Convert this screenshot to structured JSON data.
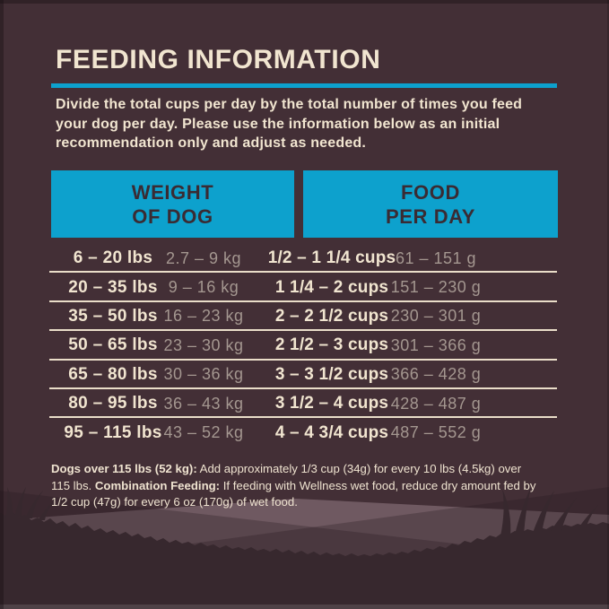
{
  "title": "FEEDING INFORMATION",
  "intro_lines": [
    "Divide the total cups per day by the total number of times you feed",
    "your dog per day. Please use the information below as an initial",
    "recommendation only and adjust as needed."
  ],
  "table": {
    "weight_header": {
      "line1": "WEIGHT",
      "line2": "OF DOG"
    },
    "food_header": {
      "line1": "FOOD",
      "line2": "PER DAY"
    },
    "rows": [
      {
        "lbs": "6 – 20 lbs",
        "kg": "2.7 – 9 kg",
        "cups": "1/2 – 1 1/4 cups",
        "grams": "61 – 151 g"
      },
      {
        "lbs": "20 – 35 lbs",
        "kg": "9 – 16 kg",
        "cups": "1 1/4 – 2 cups",
        "grams": "151 – 230 g"
      },
      {
        "lbs": "35 – 50 lbs",
        "kg": "16 – 23 kg",
        "cups": "2 – 2 1/2 cups",
        "grams": "230 – 301 g"
      },
      {
        "lbs": "50 – 65 lbs",
        "kg": "23 – 30 kg",
        "cups": "2 1/2 – 3 cups",
        "grams": "301 – 366 g"
      },
      {
        "lbs": "65 – 80 lbs",
        "kg": "30 – 36 kg",
        "cups": "3 – 3 1/2 cups",
        "grams": "366 – 428 g"
      },
      {
        "lbs": "80 – 95 lbs",
        "kg": "36 – 43 kg",
        "cups": "3 1/2 – 4 cups",
        "grams": "428 – 487 g"
      },
      {
        "lbs": "95 – 115 lbs",
        "kg": "43 – 52 kg",
        "cups": "4 – 4 3/4 cups",
        "grams": "487 – 552 g"
      }
    ]
  },
  "footnote_lines": [
    [
      {
        "text": "Dogs over 115 lbs (52 kg):",
        "bold": true
      },
      {
        "text": " Add approximately 1/3 cup (34g) for every 10 lbs (4.5kg) over",
        "bold": false
      }
    ],
    [
      {
        "text": "115 lbs. ",
        "bold": false
      },
      {
        "text": "Combination Feeding:",
        "bold": true
      },
      {
        "text": " If feeding with Wellness wet food, reduce dry amount fed by",
        "bold": false
      }
    ],
    [
      {
        "text": "1/2 cup (47g) for every 6 oz (170g) of wet food.",
        "bold": false
      }
    ]
  ],
  "colors": {
    "background": "#432f36",
    "accent_cyan": "#0da1cd",
    "cream_text": "#f1e5d0",
    "muted_metric_text": "#a49790",
    "header_text": "#3a2b33",
    "separator": "#eadec9",
    "grass_silhouette": "#37282e"
  }
}
